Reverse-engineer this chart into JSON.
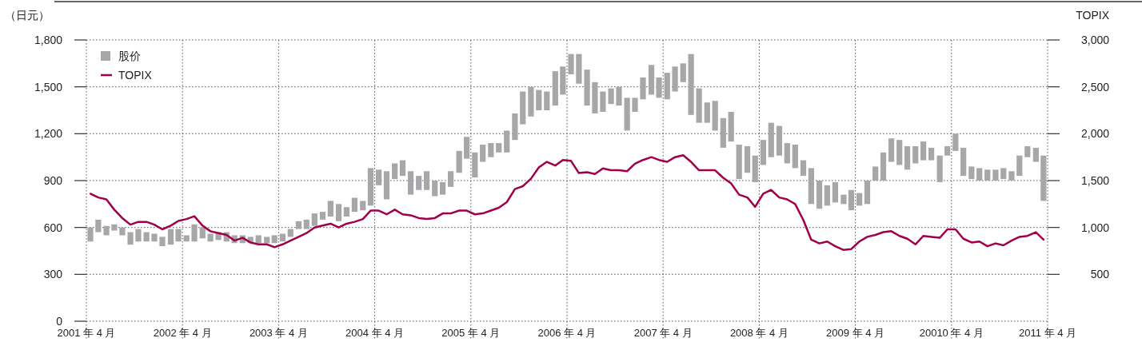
{
  "chart_data": {
    "type": "bar",
    "ylabel": "（日元）",
    "y2label": "TOPIX",
    "x": [
      "2001-04-16",
      "2001-05-16",
      "2001-06-16",
      "2001-07-16",
      "2001-08-16",
      "2001-09-16",
      "2001-10-16",
      "2001-11-16",
      "2001-12-16",
      "2002-01-16",
      "2002-02-16",
      "2002-03-16",
      "2002-04-16",
      "2002-05-16",
      "2002-06-16",
      "2002-07-16",
      "2002-08-16",
      "2002-09-16",
      "2002-10-16",
      "2002-11-16",
      "2002-12-16",
      "2003-01-16",
      "2003-02-16",
      "2003-03-16",
      "2003-04-16",
      "2003-05-16",
      "2003-06-16",
      "2003-07-16",
      "2003-08-16",
      "2003-09-16",
      "2003-10-16",
      "2003-11-16",
      "2003-12-16",
      "2004-01-16",
      "2004-02-16",
      "2004-03-16",
      "2004-04-16",
      "2004-05-16",
      "2004-06-16",
      "2004-07-16",
      "2004-08-16",
      "2004-09-16",
      "2004-10-16",
      "2004-11-16",
      "2004-12-16",
      "2005-01-16",
      "2005-02-16",
      "2005-03-16",
      "2005-04-16",
      "2005-05-16",
      "2005-06-16",
      "2005-07-16",
      "2005-08-16",
      "2005-09-16",
      "2005-10-16",
      "2005-11-16",
      "2005-12-16",
      "2006-01-16",
      "2006-02-16",
      "2006-03-16",
      "2006-04-16",
      "2006-05-16",
      "2006-06-16",
      "2006-07-16",
      "2006-08-16",
      "2006-09-16",
      "2006-10-16",
      "2006-11-16",
      "2006-12-16",
      "2007-01-16",
      "2007-02-16",
      "2007-03-16",
      "2007-04-16",
      "2007-05-16",
      "2007-06-16",
      "2007-07-16",
      "2007-08-16",
      "2007-09-16",
      "2007-10-16",
      "2007-11-16",
      "2007-12-16",
      "2008-01-16",
      "2008-02-16",
      "2008-03-16",
      "2008-04-16",
      "2008-05-16",
      "2008-06-16",
      "2008-07-16",
      "2008-08-16",
      "2008-09-16",
      "2008-10-16",
      "2008-11-16",
      "2008-12-16",
      "2009-01-16",
      "2009-02-16",
      "2009-03-16",
      "2009-04-16",
      "2009-05-16",
      "2009-06-16",
      "2009-07-16",
      "2009-08-16",
      "2009-09-16",
      "2009-10-16",
      "2009-11-16",
      "2009-12-16",
      "2010-01-16",
      "2010-02-16",
      "2010-03-16",
      "2010-04-16",
      "2010-05-16",
      "2010-06-16",
      "2010-07-16",
      "2010-08-16",
      "2010-09-16",
      "2010-10-16",
      "2010-11-16",
      "2010-12-16",
      "2011-01-16",
      "2011-02-16",
      "2011-03-16"
    ],
    "series": [
      {
        "name": "股价",
        "color": "#a7a7aa",
        "base": [
          510,
          570,
          550,
          580,
          550,
          490,
          510,
          510,
          510,
          480,
          490,
          510,
          510,
          510,
          530,
          510,
          520,
          510,
          500,
          500,
          500,
          500,
          500,
          500,
          510,
          540,
          590,
          590,
          610,
          650,
          670,
          640,
          670,
          700,
          710,
          740,
          870,
          780,
          910,
          930,
          810,
          840,
          840,
          800,
          810,
          860,
          950,
          1040,
          920,
          1020,
          1050,
          1080,
          1080,
          1160,
          1260,
          1310,
          1350,
          1350,
          1380,
          1450,
          1580,
          1520,
          1380,
          1330,
          1340,
          1390,
          1380,
          1220,
          1340,
          1420,
          1450,
          1430,
          1420,
          1470,
          1530,
          1320,
          1270,
          1270,
          1220,
          1110,
          1150,
          910,
          950,
          890,
          1000,
          1050,
          1060,
          1010,
          980,
          930,
          750,
          720,
          740,
          760,
          750,
          710,
          740,
          750,
          900,
          900,
          1020,
          1000,
          970,
          1010,
          1030,
          1030,
          890,
          1060,
          1090,
          930,
          910,
          900,
          900,
          900,
          910,
          900,
          930,
          1050,
          1020,
          770
        ],
        "values": [
          90,
          80,
          60,
          40,
          50,
          80,
          80,
          60,
          50,
          60,
          100,
          80,
          40,
          110,
          70,
          50,
          50,
          60,
          50,
          50,
          40,
          50,
          40,
          50,
          50,
          50,
          50,
          60,
          80,
          50,
          100,
          110,
          60,
          90,
          60,
          240,
          100,
          180,
          100,
          100,
          150,
          90,
          120,
          100,
          80,
          100,
          140,
          140,
          160,
          110,
          90,
          60,
          140,
          170,
          210,
          190,
          130,
          120,
          220,
          180,
          130,
          190,
          230,
          200,
          130,
          100,
          120,
          210,
          90,
          140,
          190,
          130,
          170,
          160,
          120,
          390,
          220,
          130,
          190,
          190,
          190,
          220,
          170,
          170,
          160,
          220,
          190,
          130,
          150,
          100,
          230,
          180,
          130,
          130,
          60,
          130,
          80,
          150,
          90,
          180,
          150,
          160,
          150,
          110,
          120,
          80,
          170,
          60,
          110,
          180,
          80,
          80,
          70,
          70,
          70,
          60,
          130,
          70,
          90,
          290
        ]
      },
      {
        "name": "TOPIX",
        "type": "line",
        "axis": "y2",
        "color": "#a0004a",
        "values": [
          1360,
          1320,
          1300,
          1190,
          1100,
          1030,
          1060,
          1060,
          1030,
          980,
          1020,
          1070,
          1090,
          1120,
          1020,
          960,
          940,
          920,
          860,
          890,
          840,
          820,
          820,
          790,
          820,
          860,
          900,
          940,
          1000,
          1020,
          1040,
          1000,
          1040,
          1060,
          1090,
          1180,
          1180,
          1140,
          1190,
          1140,
          1130,
          1100,
          1090,
          1100,
          1150,
          1150,
          1180,
          1180,
          1140,
          1150,
          1180,
          1210,
          1270,
          1410,
          1440,
          1520,
          1640,
          1700,
          1660,
          1720,
          1710,
          1580,
          1590,
          1570,
          1630,
          1610,
          1610,
          1600,
          1680,
          1720,
          1750,
          1720,
          1700,
          1750,
          1770,
          1700,
          1610,
          1610,
          1610,
          1530,
          1470,
          1350,
          1320,
          1220,
          1360,
          1400,
          1320,
          1300,
          1250,
          1080,
          870,
          830,
          850,
          800,
          760,
          770,
          850,
          900,
          920,
          950,
          960,
          910,
          880,
          820,
          910,
          900,
          890,
          980,
          980,
          880,
          840,
          850,
          800,
          830,
          810,
          860,
          900,
          910,
          950,
          870
        ]
      }
    ],
    "xlim": [
      "2001-04",
      "2011-04"
    ],
    "xticks": [
      {
        "value": "2001-04",
        "label": "2001 年 4 月"
      },
      {
        "value": "2002-04",
        "label": "2002 年 4 月"
      },
      {
        "value": "2003-04",
        "label": "2003 年 4 月"
      },
      {
        "value": "2004-04",
        "label": "2004 年 4 月"
      },
      {
        "value": "2005-04",
        "label": "2005 年 4 月"
      },
      {
        "value": "2006-04",
        "label": "2006 年 4 月"
      },
      {
        "value": "2007-04",
        "label": "2007 年 4 月"
      },
      {
        "value": "2008-04",
        "label": "2008 年 4 月"
      },
      {
        "value": "2009-04",
        "label": "2009 年 4 月"
      },
      {
        "value": "2010-04",
        "label": "20010 年 4 月"
      },
      {
        "value": "2011-04",
        "label": "2011 年 4 月"
      }
    ],
    "ylim": [
      0,
      1800
    ],
    "yticks": [
      0,
      300,
      600,
      900,
      {
        "value": 1200,
        "label": "1,200"
      },
      {
        "value": 1500,
        "label": "1,500"
      },
      {
        "value": 1800,
        "label": "1,800"
      }
    ],
    "y2lim": [
      0,
      3000
    ],
    "y2ticks": [
      500,
      {
        "value": 1000,
        "label": "1,000"
      },
      {
        "value": 1500,
        "label": "1,500"
      },
      {
        "value": 2000,
        "label": "2,000"
      },
      {
        "value": 2500,
        "label": "2,500"
      },
      {
        "value": 3000,
        "label": "3,000"
      }
    ],
    "grid": true,
    "legend": "top left"
  }
}
